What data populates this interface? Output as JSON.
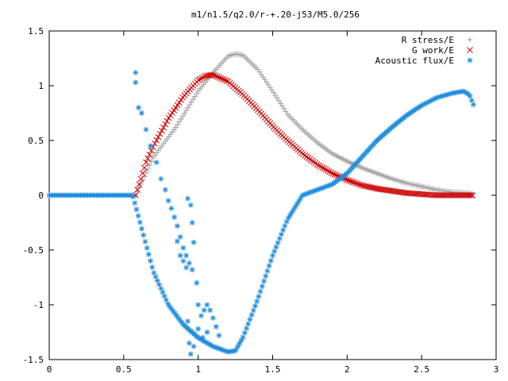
{
  "chart_data": {
    "type": "scatter",
    "title": "m1/n1.5/q2.0/r-+.20-j53/M5.0/256",
    "xlabel": "",
    "ylabel": "",
    "xlim": [
      0,
      3
    ],
    "ylim": [
      -1.5,
      1.5
    ],
    "x_ticks": [
      "0",
      "0.5",
      "1",
      "1.5",
      "2",
      "2.5",
      "3"
    ],
    "y_ticks": [
      "-1.5",
      "-1",
      "-0.5",
      "0",
      "0.5",
      "1",
      "1.5"
    ],
    "grid": false,
    "legend_position": "top-right",
    "series": [
      {
        "name": "R stress/E",
        "marker": "plus",
        "color": "#a0a0a0",
        "curve_points": [
          [
            0.58,
            0.0
          ],
          [
            0.7,
            0.35
          ],
          [
            0.85,
            0.62
          ],
          [
            1.0,
            0.95
          ],
          [
            1.1,
            1.12
          ],
          [
            1.2,
            1.27
          ],
          [
            1.25,
            1.29
          ],
          [
            1.3,
            1.28
          ],
          [
            1.4,
            1.15
          ],
          [
            1.5,
            0.95
          ],
          [
            1.6,
            0.74
          ],
          [
            1.7,
            0.6
          ],
          [
            1.8,
            0.48
          ],
          [
            1.9,
            0.38
          ],
          [
            2.0,
            0.31
          ],
          [
            2.1,
            0.25
          ],
          [
            2.2,
            0.2
          ],
          [
            2.3,
            0.15
          ],
          [
            2.4,
            0.11
          ],
          [
            2.5,
            0.08
          ],
          [
            2.6,
            0.05
          ],
          [
            2.7,
            0.03
          ],
          [
            2.8,
            0.02
          ],
          [
            2.85,
            0.01
          ]
        ]
      },
      {
        "name": "G work/E",
        "marker": "cross",
        "color": "#cc0000",
        "curve_points": [
          [
            0.58,
            0.0
          ],
          [
            0.65,
            0.3
          ],
          [
            0.7,
            0.45
          ],
          [
            0.8,
            0.7
          ],
          [
            0.9,
            0.9
          ],
          [
            1.0,
            1.05
          ],
          [
            1.05,
            1.09
          ],
          [
            1.1,
            1.1
          ],
          [
            1.2,
            1.04
          ],
          [
            1.3,
            0.92
          ],
          [
            1.4,
            0.78
          ],
          [
            1.5,
            0.63
          ],
          [
            1.6,
            0.5
          ],
          [
            1.7,
            0.38
          ],
          [
            1.8,
            0.28
          ],
          [
            1.9,
            0.2
          ],
          [
            2.0,
            0.14
          ],
          [
            2.1,
            0.09
          ],
          [
            2.2,
            0.06
          ],
          [
            2.3,
            0.04
          ],
          [
            2.4,
            0.02
          ],
          [
            2.5,
            0.01
          ],
          [
            2.6,
            0.0
          ],
          [
            2.85,
            0.0
          ]
        ]
      },
      {
        "name": "Acoustic flux/E",
        "marker": "star",
        "color": "#1e8cdc",
        "curve_points": [
          [
            0.0,
            0.0
          ],
          [
            0.56,
            0.0
          ],
          [
            0.62,
            -0.3
          ],
          [
            0.7,
            -0.7
          ],
          [
            0.8,
            -1.0
          ],
          [
            0.9,
            -1.18
          ],
          [
            1.0,
            -1.3
          ],
          [
            1.1,
            -1.38
          ],
          [
            1.2,
            -1.43
          ],
          [
            1.25,
            -1.42
          ],
          [
            1.3,
            -1.3
          ],
          [
            1.4,
            -0.95
          ],
          [
            1.5,
            -0.55
          ],
          [
            1.6,
            -0.22
          ],
          [
            1.7,
            0.0
          ],
          [
            1.8,
            0.05
          ],
          [
            1.9,
            0.1
          ],
          [
            2.0,
            0.2
          ],
          [
            2.1,
            0.35
          ],
          [
            2.2,
            0.5
          ],
          [
            2.3,
            0.62
          ],
          [
            2.4,
            0.73
          ],
          [
            2.5,
            0.82
          ],
          [
            2.6,
            0.89
          ],
          [
            2.7,
            0.93
          ],
          [
            2.78,
            0.95
          ],
          [
            2.82,
            0.92
          ],
          [
            2.85,
            0.82
          ]
        ],
        "scattered_points": [
          [
            0.58,
            1.12
          ],
          [
            0.58,
            1.03
          ],
          [
            0.6,
            0.8
          ],
          [
            0.62,
            0.75
          ],
          [
            0.65,
            0.6
          ],
          [
            0.68,
            0.45
          ],
          [
            0.72,
            0.3
          ],
          [
            0.75,
            0.15
          ],
          [
            0.78,
            0.05
          ],
          [
            0.8,
            -0.05
          ],
          [
            0.82,
            -0.12
          ],
          [
            0.84,
            -0.2
          ],
          [
            0.86,
            -0.28
          ],
          [
            0.88,
            -0.38
          ],
          [
            0.9,
            -0.48
          ],
          [
            0.92,
            -0.55
          ],
          [
            0.94,
            -0.62
          ],
          [
            0.96,
            -0.68
          ],
          [
            0.86,
            -0.42
          ],
          [
            0.88,
            -0.55
          ],
          [
            0.9,
            -0.6
          ],
          [
            0.92,
            -0.66
          ],
          [
            0.93,
            -0.03
          ],
          [
            0.95,
            -0.09
          ],
          [
            0.96,
            -0.25
          ],
          [
            0.97,
            -0.43
          ],
          [
            0.99,
            -0.8
          ],
          [
            1.0,
            -1.0
          ],
          [
            1.02,
            -1.1
          ],
          [
            1.04,
            -1.05
          ],
          [
            1.06,
            -1.0
          ],
          [
            1.08,
            -1.05
          ],
          [
            1.1,
            -1.12
          ],
          [
            1.12,
            -1.2
          ],
          [
            1.14,
            -1.28
          ],
          [
            0.93,
            -1.15
          ],
          [
            0.94,
            -1.35
          ],
          [
            0.95,
            -1.45
          ],
          [
            0.97,
            -1.38
          ],
          [
            1.0,
            -1.22
          ],
          [
            1.03,
            -1.3
          ],
          [
            1.06,
            -1.25
          ]
        ]
      }
    ]
  }
}
